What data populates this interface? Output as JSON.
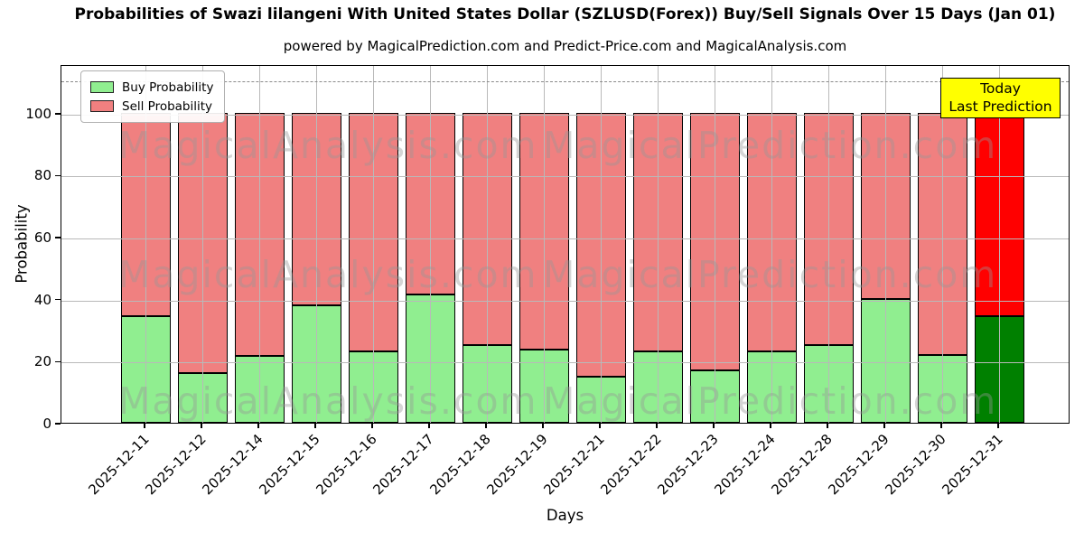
{
  "title": "Probabilities of Swazi lilangeni With United States Dollar (SZLUSD(Forex)) Buy/Sell Signals Over 15 Days (Jan 01)",
  "subtitle": "powered by MagicalPrediction.com and Predict-Price.com and MagicalAnalysis.com",
  "axes": {
    "ylabel": "Probability",
    "xlabel": "Days",
    "ytick_labels": [
      "0",
      "20",
      "40",
      "60",
      "80",
      "100"
    ],
    "ytick_values": [
      0,
      20,
      40,
      60,
      80,
      100
    ]
  },
  "legend": {
    "buy_label": "Buy Probability",
    "sell_label": "Sell Probability"
  },
  "annotation": {
    "line1": "Today",
    "line2": "Last Prediction"
  },
  "watermarks": {
    "left_text": "MagicalAnalysis.com",
    "right_text": "MagicalPrediction.com"
  },
  "colors": {
    "buy": "#90ee90",
    "sell": "#f08080",
    "buy_today": "#008000",
    "sell_today": "#ff0000",
    "annotation_bg": "#ffff00",
    "grid": "#b9b9b9",
    "dashed_line": "#8a8a8a"
  },
  "chart_data": {
    "type": "bar",
    "stacked": true,
    "title": "Probabilities of Swazi lilangeni With United States Dollar (SZLUSD(Forex)) Buy/Sell Signals Over 15 Days (Jan 01)",
    "xlabel": "Days",
    "ylabel": "Probability",
    "categories": [
      "2025-12-11",
      "2025-12-12",
      "2025-12-14",
      "2025-12-15",
      "2025-12-16",
      "2025-12-17",
      "2025-12-18",
      "2025-12-19",
      "2025-12-21",
      "2025-12-22",
      "2025-12-23",
      "2025-12-24",
      "2025-12-28",
      "2025-12-29",
      "2025-12-30",
      "2025-12-31"
    ],
    "series": [
      {
        "name": "Buy Probability",
        "values": [
          34.5,
          16,
          21.5,
          38,
          23,
          41.5,
          25,
          23.5,
          15,
          23,
          17,
          23,
          25,
          40,
          22,
          34.5
        ]
      },
      {
        "name": "Sell Probability",
        "values": [
          65.5,
          84,
          78.5,
          62,
          77,
          58.5,
          75,
          76.5,
          85,
          77,
          83,
          77,
          75,
          60,
          78,
          65.5
        ]
      }
    ],
    "today_bar_index": 15,
    "ylim": [
      0,
      115.7
    ],
    "dashed_line_y": 110.8,
    "grid": true,
    "legend_position": "upper left"
  }
}
